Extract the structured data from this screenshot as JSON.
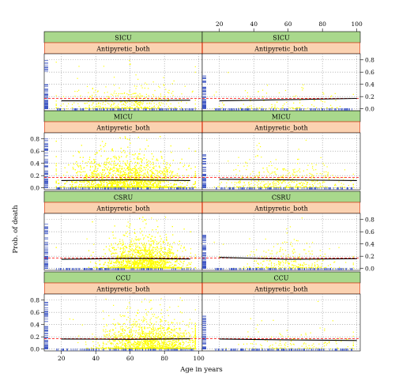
{
  "chart_data": {
    "type": "scatter",
    "xlabel": "Age in years",
    "ylabel": "Prob. of death",
    "xlim": [
      10,
      102
    ],
    "ylim": [
      -0.03,
      0.9
    ],
    "x_ticks": [
      "20",
      "40",
      "60",
      "80",
      "100"
    ],
    "y_ticks": [
      "0.0",
      "0.2",
      "0.4",
      "0.6",
      "0.8"
    ],
    "grid": true,
    "colors": {
      "points": "#ffff00",
      "fit_line": "#000000",
      "reference_line": "#ff0000",
      "rug": "#3b54c4",
      "strip_outer": "#a9d88c",
      "strip_inner": "#fbd2b1",
      "strip_inner_border": "#e0502a",
      "grid": "#9a9a9a"
    },
    "panels": [
      {
        "unit": "CCU",
        "treatment": "Antipyretic_both",
        "column": "left",
        "n_points": 1700,
        "x_center": 72,
        "x_spread": 15,
        "y_center": 0.17,
        "fit": [
          [
            20,
            0.165
          ],
          [
            60,
            0.16
          ],
          [
            95,
            0.168
          ]
        ],
        "reference": 0.17
      },
      {
        "unit": "CCU",
        "treatment": "Antipyretic_both",
        "column": "right",
        "n_points": 150,
        "x_center": 65,
        "x_spread": 18,
        "y_center": 0.14,
        "fit": [
          [
            20,
            0.165
          ],
          [
            60,
            0.15
          ],
          [
            100,
            0.14
          ]
        ],
        "reference": 0.17
      },
      {
        "unit": "CSRU",
        "treatment": "Antipyretic_both",
        "column": "left",
        "n_points": 2400,
        "x_center": 68,
        "x_spread": 11,
        "y_center": 0.17,
        "fit": [
          [
            20,
            0.15
          ],
          [
            60,
            0.165
          ],
          [
            95,
            0.155
          ]
        ],
        "reference": 0.17
      },
      {
        "unit": "CSRU",
        "treatment": "Antipyretic_both",
        "column": "right",
        "n_points": 280,
        "x_center": 62,
        "x_spread": 15,
        "y_center": 0.15,
        "fit": [
          [
            20,
            0.18
          ],
          [
            60,
            0.15
          ],
          [
            100,
            0.16
          ]
        ],
        "reference": 0.17
      },
      {
        "unit": "MICU",
        "treatment": "Antipyretic_both",
        "column": "left",
        "n_points": 3400,
        "x_center": 58,
        "x_spread": 17,
        "y_center": 0.18,
        "fit": [
          [
            20,
            0.12
          ],
          [
            60,
            0.13
          ],
          [
            95,
            0.12
          ]
        ],
        "reference": 0.17
      },
      {
        "unit": "MICU",
        "treatment": "Antipyretic_both",
        "column": "right",
        "n_points": 450,
        "x_center": 58,
        "x_spread": 18,
        "y_center": 0.15,
        "fit": [
          [
            20,
            0.14
          ],
          [
            60,
            0.13
          ],
          [
            100,
            0.12
          ]
        ],
        "reference": 0.17
      },
      {
        "unit": "SICU",
        "treatment": "Antipyretic_both",
        "column": "left",
        "n_points": 450,
        "x_center": 58,
        "x_spread": 18,
        "y_center": 0.14,
        "fit": [
          [
            20,
            0.13
          ],
          [
            60,
            0.13
          ],
          [
            95,
            0.14
          ]
        ],
        "reference": 0.17
      },
      {
        "unit": "SICU",
        "treatment": "Antipyretic_both",
        "column": "right",
        "n_points": 120,
        "x_center": 58,
        "x_spread": 20,
        "y_center": 0.13,
        "fit": [
          [
            20,
            0.13
          ],
          [
            60,
            0.15
          ],
          [
            100,
            0.17
          ]
        ],
        "reference": 0.17
      }
    ]
  }
}
